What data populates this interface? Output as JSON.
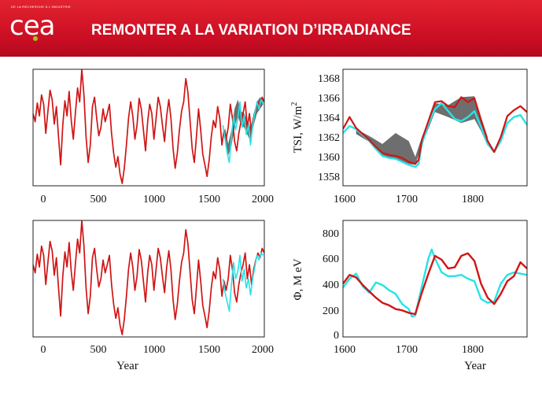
{
  "header": {
    "logo_small_text": "DE LA RECHERCHE À L'INDUSTRIE",
    "logo_text": "cea",
    "title": "REMONTER A LA VARIATION D’IRRADIANCE"
  },
  "colors": {
    "banner": "#d0152a",
    "red_series": "#d11414",
    "cyan_series": "#27e3e6",
    "band_fill": "#555555",
    "logo_dot": "#a8c31a"
  },
  "chart_data": [
    {
      "id": "top-left",
      "type": "line",
      "xlim": [
        -150,
        2030
      ],
      "ylim": [
        0,
        1
      ],
      "xticks": [
        "0",
        "500",
        "1000",
        "1500",
        "2000"
      ],
      "xlabel": "",
      "ylabel": "",
      "y_tick_labels_shown": false,
      "series": [
        {
          "color": "#d11414",
          "x": [
            -150,
            -130,
            -110,
            -90,
            -70,
            -50,
            -30,
            -10,
            10,
            30,
            50,
            70,
            90,
            110,
            130,
            150,
            170,
            190,
            210,
            230,
            250,
            270,
            290,
            310,
            330,
            350,
            370,
            390,
            410,
            430,
            450,
            470,
            490,
            510,
            530,
            550,
            570,
            590,
            610,
            630,
            650,
            670,
            690,
            710,
            730,
            750,
            770,
            790,
            810,
            830,
            850,
            870,
            890,
            910,
            930,
            950,
            970,
            990,
            1010,
            1030,
            1050,
            1070,
            1090,
            1110,
            1130,
            1150,
            1170,
            1190,
            1210,
            1230,
            1250,
            1270,
            1290,
            1310,
            1330,
            1350,
            1370,
            1390,
            1410,
            1430,
            1450,
            1470,
            1490,
            1510,
            1530,
            1550,
            1570,
            1590,
            1610,
            1630,
            1650,
            1670,
            1690,
            1710,
            1730,
            1750,
            1770,
            1790,
            1810,
            1830,
            1850,
            1870,
            1890,
            1910,
            1930,
            1950,
            1970,
            1990,
            2010,
            2030
          ],
          "y": [
            0.62,
            0.55,
            0.71,
            0.6,
            0.78,
            0.7,
            0.45,
            0.64,
            0.82,
            0.74,
            0.53,
            0.68,
            0.42,
            0.18,
            0.52,
            0.73,
            0.6,
            0.81,
            0.56,
            0.4,
            0.63,
            0.84,
            0.72,
            1.0,
            0.78,
            0.42,
            0.2,
            0.35,
            0.68,
            0.76,
            0.58,
            0.43,
            0.5,
            0.66,
            0.55,
            0.62,
            0.7,
            0.45,
            0.28,
            0.16,
            0.25,
            0.1,
            0.02,
            0.15,
            0.35,
            0.58,
            0.72,
            0.6,
            0.4,
            0.52,
            0.75,
            0.66,
            0.48,
            0.3,
            0.55,
            0.7,
            0.62,
            0.4,
            0.58,
            0.76,
            0.68,
            0.52,
            0.38,
            0.6,
            0.74,
            0.58,
            0.32,
            0.15,
            0.28,
            0.48,
            0.64,
            0.72,
            0.92,
            0.8,
            0.56,
            0.32,
            0.2,
            0.42,
            0.66,
            0.48,
            0.27,
            0.18,
            0.08,
            0.22,
            0.42,
            0.56,
            0.5,
            0.68,
            0.58,
            0.35,
            0.48,
            0.4,
            0.5,
            0.7,
            0.58,
            0.38,
            0.3,
            0.45,
            0.55,
            0.62,
            0.72,
            0.5,
            0.62,
            0.45,
            0.58,
            0.66,
            0.72,
            0.68,
            0.76,
            0.72
          ],
          "width": 1.7
        },
        {
          "color": "#27e3e6",
          "x": [
            1640,
            1660,
            1680,
            1700,
            1720,
            1740,
            1760,
            1780,
            1800,
            1820,
            1840,
            1860,
            1880,
            1900,
            1920,
            1940,
            1960,
            1980,
            2000,
            2020
          ],
          "y": [
            0.52,
            0.4,
            0.28,
            0.2,
            0.42,
            0.6,
            0.48,
            0.58,
            0.72,
            0.5,
            0.6,
            0.44,
            0.52,
            0.35,
            0.52,
            0.62,
            0.72,
            0.66,
            0.74,
            0.7
          ],
          "width": 1.6
        }
      ],
      "band": {
        "color": "#555555",
        "x": [
          1660,
          1690,
          1720,
          1750,
          1780,
          1810,
          1840,
          1870,
          1900,
          1930,
          1960,
          1990,
          2020
        ],
        "low": [
          0.42,
          0.26,
          0.34,
          0.5,
          0.6,
          0.52,
          0.5,
          0.44,
          0.38,
          0.52,
          0.62,
          0.66,
          0.7
        ],
        "high": [
          0.5,
          0.36,
          0.48,
          0.66,
          0.74,
          0.64,
          0.62,
          0.56,
          0.5,
          0.62,
          0.72,
          0.76,
          0.74
        ]
      }
    },
    {
      "id": "top-right",
      "type": "line",
      "xlim": [
        1600,
        1880
      ],
      "ylim": [
        1357.3,
        1369
      ],
      "xticks": [
        "1600",
        "1700",
        "1800"
      ],
      "yticks": [
        "1358",
        "1360",
        "1362",
        "1364",
        "1366",
        "1368"
      ],
      "ylabel": "TSI, W/m",
      "ylabel_sup": "2",
      "series": [
        {
          "color": "#27e3e6",
          "x": [
            1600,
            1610,
            1620,
            1630,
            1640,
            1650,
            1660,
            1670,
            1680,
            1690,
            1700,
            1710,
            1715,
            1720,
            1730,
            1740,
            1750,
            1760,
            1770,
            1780,
            1790,
            1800,
            1810,
            1820,
            1830,
            1840,
            1850,
            1860,
            1870,
            1880
          ],
          "y": [
            1362.6,
            1363.3,
            1363.0,
            1362.4,
            1361.8,
            1361.0,
            1360.3,
            1360.1,
            1360.0,
            1359.7,
            1359.4,
            1359.2,
            1359.5,
            1361.5,
            1363.5,
            1365.0,
            1365.6,
            1364.8,
            1364.0,
            1363.8,
            1364.2,
            1364.8,
            1363.2,
            1361.5,
            1360.7,
            1361.8,
            1363.6,
            1364.2,
            1364.4,
            1363.4
          ],
          "width": 2.4
        },
        {
          "color": "#d11414",
          "x": [
            1600,
            1610,
            1620,
            1630,
            1640,
            1650,
            1660,
            1670,
            1680,
            1690,
            1700,
            1710,
            1715,
            1720,
            1730,
            1740,
            1750,
            1760,
            1770,
            1780,
            1790,
            1800,
            1810,
            1820,
            1830,
            1840,
            1850,
            1860,
            1870,
            1880
          ],
          "y": [
            1363.0,
            1364.2,
            1363.1,
            1362.5,
            1361.9,
            1361.2,
            1360.6,
            1360.4,
            1360.3,
            1360.1,
            1359.7,
            1359.5,
            1359.9,
            1361.9,
            1363.8,
            1365.7,
            1365.8,
            1365.3,
            1365.2,
            1366.2,
            1365.7,
            1366.1,
            1363.9,
            1361.8,
            1360.7,
            1362.2,
            1364.3,
            1364.9,
            1365.3,
            1364.7
          ],
          "width": 2.2
        }
      ],
      "band": {
        "color": "#555555",
        "x": [
          1620,
          1640,
          1660,
          1680,
          1700,
          1710,
          1720,
          1740,
          1760,
          1780,
          1800,
          1810,
          1820
        ],
        "low": [
          1362.5,
          1361.7,
          1360.2,
          1360.0,
          1359.5,
          1359.4,
          1361.4,
          1364.7,
          1364.2,
          1363.6,
          1364.0,
          1362.8,
          1361.3
        ],
        "high": [
          1363.0,
          1362.3,
          1361.5,
          1362.6,
          1361.8,
          1360.2,
          1362.2,
          1365.6,
          1365.4,
          1366.2,
          1366.3,
          1364.2,
          1362.2
        ]
      }
    },
    {
      "id": "bottom-left",
      "type": "line",
      "xlim": [
        -150,
        2030
      ],
      "ylim": [
        0,
        1
      ],
      "xticks": [
        "0",
        "500",
        "1000",
        "1500",
        "2000"
      ],
      "xlabel": "Year",
      "ylabel": "",
      "y_tick_labels_shown": false,
      "series": [
        {
          "color": "#d11414",
          "x": [
            -150,
            -130,
            -110,
            -90,
            -70,
            -50,
            -30,
            -10,
            10,
            30,
            50,
            70,
            90,
            110,
            130,
            150,
            170,
            190,
            210,
            230,
            250,
            270,
            290,
            310,
            330,
            350,
            370,
            390,
            410,
            430,
            450,
            470,
            490,
            510,
            530,
            550,
            570,
            590,
            610,
            630,
            650,
            670,
            690,
            710,
            730,
            750,
            770,
            790,
            810,
            830,
            850,
            870,
            890,
            910,
            930,
            950,
            970,
            990,
            1010,
            1030,
            1050,
            1070,
            1090,
            1110,
            1130,
            1150,
            1170,
            1190,
            1210,
            1230,
            1250,
            1270,
            1290,
            1310,
            1330,
            1350,
            1370,
            1390,
            1410,
            1430,
            1450,
            1470,
            1490,
            1510,
            1530,
            1550,
            1570,
            1590,
            1610,
            1630,
            1650,
            1670,
            1690,
            1710,
            1730,
            1750,
            1770,
            1790,
            1810,
            1830,
            1850,
            1870,
            1890,
            1910,
            1930,
            1950,
            1970,
            1990,
            2010,
            2030
          ],
          "y": [
            0.62,
            0.55,
            0.71,
            0.6,
            0.78,
            0.7,
            0.45,
            0.64,
            0.82,
            0.74,
            0.53,
            0.68,
            0.42,
            0.18,
            0.52,
            0.73,
            0.6,
            0.81,
            0.56,
            0.4,
            0.63,
            0.84,
            0.72,
            1.0,
            0.78,
            0.42,
            0.2,
            0.35,
            0.68,
            0.76,
            0.58,
            0.43,
            0.5,
            0.66,
            0.55,
            0.62,
            0.7,
            0.45,
            0.28,
            0.16,
            0.25,
            0.1,
            0.02,
            0.15,
            0.35,
            0.58,
            0.72,
            0.6,
            0.4,
            0.52,
            0.75,
            0.66,
            0.48,
            0.3,
            0.55,
            0.7,
            0.62,
            0.4,
            0.58,
            0.76,
            0.68,
            0.52,
            0.38,
            0.6,
            0.74,
            0.58,
            0.32,
            0.15,
            0.28,
            0.48,
            0.64,
            0.72,
            0.92,
            0.8,
            0.56,
            0.32,
            0.2,
            0.42,
            0.66,
            0.48,
            0.27,
            0.18,
            0.08,
            0.22,
            0.42,
            0.56,
            0.5,
            0.68,
            0.58,
            0.35,
            0.48,
            0.4,
            0.5,
            0.7,
            0.58,
            0.38,
            0.3,
            0.45,
            0.55,
            0.62,
            0.72,
            0.5,
            0.62,
            0.45,
            0.58,
            0.66,
            0.72,
            0.68,
            0.76,
            0.72
          ],
          "width": 1.7
        },
        {
          "color": "#27e3e6",
          "x": [
            1640,
            1660,
            1680,
            1700,
            1720,
            1740,
            1760,
            1780,
            1800,
            1820,
            1840,
            1860,
            1880,
            1900,
            1920,
            1940,
            1960,
            1980,
            2000,
            2020
          ],
          "y": [
            0.5,
            0.38,
            0.3,
            0.22,
            0.45,
            0.64,
            0.5,
            0.56,
            0.7,
            0.48,
            0.58,
            0.42,
            0.5,
            0.36,
            0.5,
            0.6,
            0.7,
            0.66,
            0.72,
            0.7
          ],
          "width": 1.6
        }
      ]
    },
    {
      "id": "bottom-right",
      "type": "line",
      "xlim": [
        1600,
        1880
      ],
      "ylim": [
        -20,
        900
      ],
      "xticks": [
        "1600",
        "1700",
        "1800"
      ],
      "yticks": [
        "0",
        "200",
        "400",
        "600",
        "800"
      ],
      "xlabel": "Year",
      "ylabel": "Φ, M eV",
      "series": [
        {
          "color": "#27e3e6",
          "x": [
            1600,
            1610,
            1620,
            1630,
            1640,
            1650,
            1660,
            1670,
            1680,
            1690,
            1700,
            1705,
            1710,
            1720,
            1730,
            1735,
            1740,
            1750,
            1760,
            1770,
            1780,
            1790,
            1800,
            1810,
            1820,
            1830,
            1840,
            1850,
            1860,
            1870,
            1880
          ],
          "y": [
            370,
            440,
            480,
            380,
            330,
            410,
            390,
            350,
            320,
            240,
            200,
            140,
            150,
            380,
            600,
            670,
            600,
            490,
            460,
            460,
            470,
            440,
            420,
            280,
            250,
            260,
            400,
            470,
            490,
            480,
            470
          ],
          "width": 2.4
        },
        {
          "color": "#d11414",
          "x": [
            1600,
            1610,
            1620,
            1630,
            1640,
            1650,
            1660,
            1670,
            1680,
            1690,
            1700,
            1710,
            1720,
            1730,
            1740,
            1750,
            1760,
            1770,
            1780,
            1790,
            1800,
            1810,
            1820,
            1830,
            1840,
            1850,
            1860,
            1870,
            1880
          ],
          "y": [
            400,
            470,
            450,
            390,
            340,
            290,
            250,
            230,
            200,
            190,
            170,
            160,
            330,
            480,
            620,
            590,
            520,
            530,
            620,
            640,
            580,
            400,
            290,
            240,
            320,
            420,
            460,
            570,
            520
          ],
          "width": 2.4
        }
      ]
    }
  ]
}
